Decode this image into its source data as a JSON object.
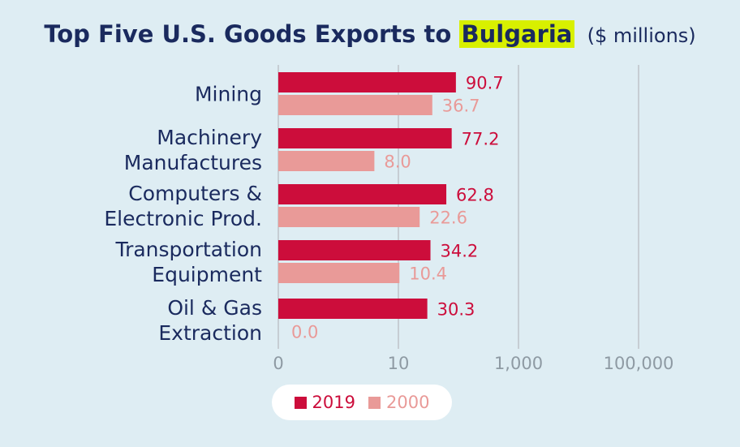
{
  "title": {
    "main": "Top Five U.S. Goods Exports to",
    "highlight": "Bulgaria",
    "unit": "($ millions)"
  },
  "colors": {
    "s2019": "#cc0d3b",
    "s2000": "#e99a98",
    "axis": "#c6cdd3",
    "label": "#1a2a5e",
    "tick": "#8e9aa3"
  },
  "chart_data": {
    "type": "bar",
    "orientation": "horizontal",
    "categories": [
      [
        "Mining"
      ],
      [
        "Machinery",
        "Manufactures"
      ],
      [
        "Computers &",
        "Electronic Prod."
      ],
      [
        "Transportation",
        "Equipment"
      ],
      [
        "Oil & Gas",
        "Extraction"
      ]
    ],
    "series": [
      {
        "name": "2019",
        "values": [
          90.7,
          77.2,
          62.8,
          34.2,
          30.3
        ],
        "labels": [
          "90.7",
          "77.2",
          "62.8",
          "34.2",
          "30.3"
        ]
      },
      {
        "name": "2000",
        "values": [
          36.7,
          8.0,
          22.6,
          10.4,
          0.0
        ],
        "labels": [
          "36.7",
          "8.0",
          "22.6",
          "10.4",
          "0.0"
        ]
      }
    ],
    "x_ticks": [
      "0",
      "10",
      "1,000",
      "100,000"
    ],
    "x_scale": "log",
    "legend": {
      "placement": "bottom",
      "labels": [
        "2019",
        "2000"
      ]
    }
  }
}
